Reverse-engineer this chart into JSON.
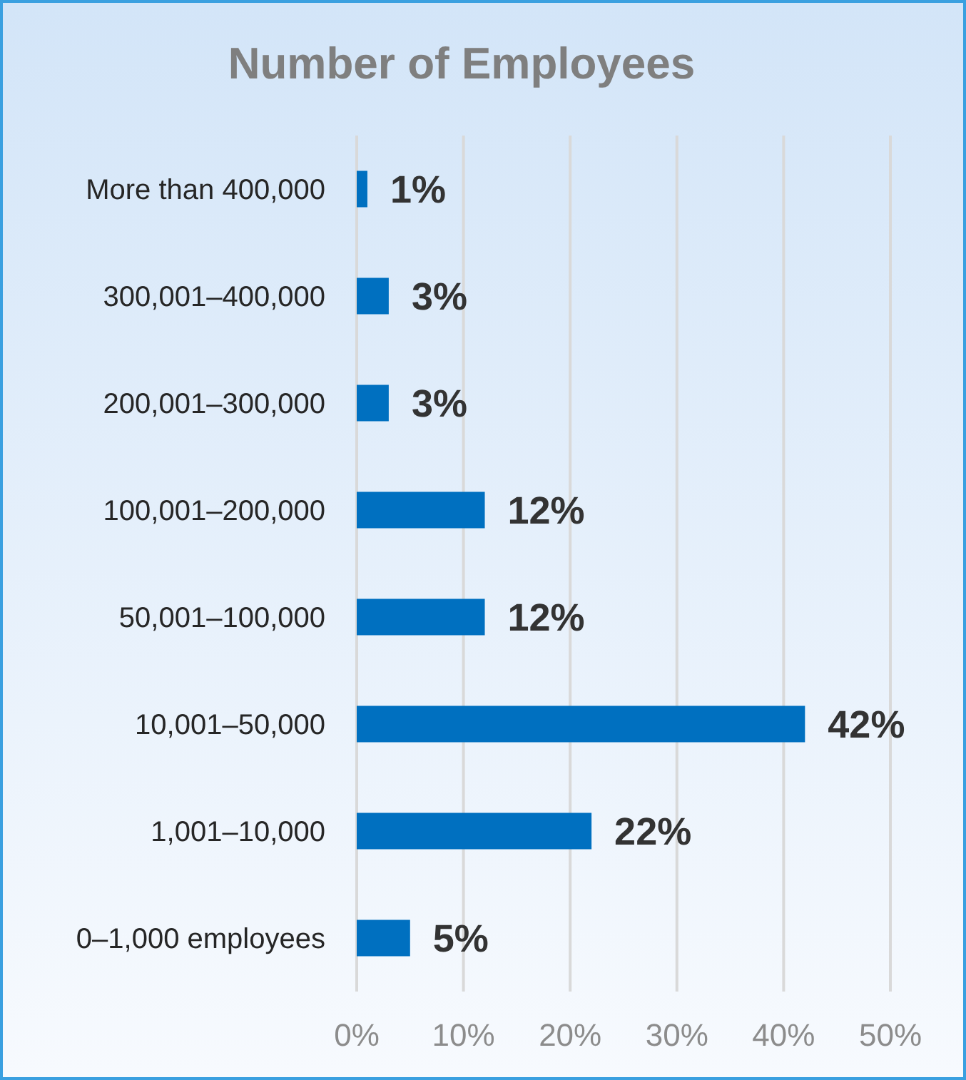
{
  "chart_data": {
    "type": "bar",
    "orientation": "horizontal",
    "title": "Number of Employees",
    "categories": [
      "More than 400,000",
      "300,001–400,000",
      "200,001–300,000",
      "100,001–200,000",
      "50,001–100,000",
      "10,001–50,000",
      "1,001–10,000",
      "0–1,000 employees"
    ],
    "values": [
      1,
      3,
      3,
      12,
      12,
      42,
      22,
      5
    ],
    "color": "#0070c0",
    "data_labels": true,
    "value_labels": [
      "1%",
      "3%",
      "3%",
      "12%",
      "12%",
      "42%",
      "22%",
      "5%"
    ],
    "xlim": [
      0,
      50
    ],
    "xticks": [
      {
        "value": 0,
        "label": "0%"
      },
      {
        "value": 10,
        "label": "10%"
      },
      {
        "value": 20,
        "label": "20%"
      },
      {
        "value": 30,
        "label": "30%"
      },
      {
        "value": 40,
        "label": "40%"
      },
      {
        "value": 50,
        "label": "50%"
      }
    ],
    "grid": "x"
  }
}
